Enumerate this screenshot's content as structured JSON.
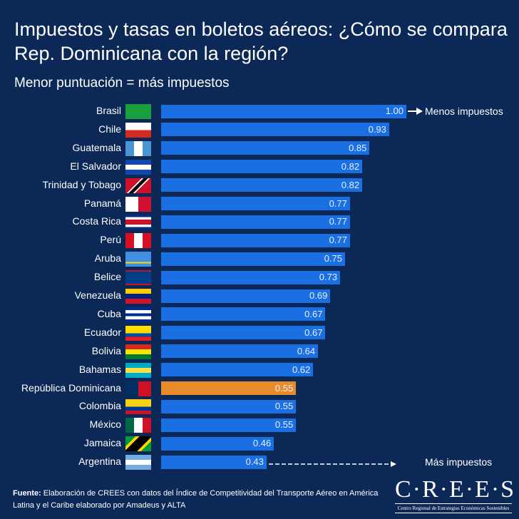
{
  "title": "Impuestos y tasas en boletos aéreos: ¿Cómo se compara Rep. Dominicana con la región?",
  "subtitle": "Menor puntuación = más impuestos",
  "colors": {
    "background": "#0c2857",
    "bar": "#1a6fe3",
    "highlight": "#e98b2a"
  },
  "chart_data": {
    "type": "bar",
    "orientation": "horizontal",
    "categories": [
      "Brasil",
      "Chile",
      "Guatemala",
      "El Salvador",
      "Trinidad y Tobago",
      "Panamá",
      "Costa Rica",
      "Perú",
      "Aruba",
      "Belice",
      "Venezuela",
      "Cuba",
      "Ecuador",
      "Bolivia",
      "Bahamas",
      "República Dominicana",
      "Colombia",
      "México",
      "Jamaica",
      "Argentina"
    ],
    "values": [
      1.0,
      0.93,
      0.85,
      0.82,
      0.82,
      0.77,
      0.77,
      0.77,
      0.75,
      0.73,
      0.69,
      0.67,
      0.67,
      0.64,
      0.62,
      0.55,
      0.55,
      0.55,
      0.46,
      0.43
    ],
    "value_labels": [
      "1.00",
      "0.93",
      "0.85",
      "0.82",
      "0.82",
      "0.77",
      "0.77",
      "0.77",
      "0.75",
      "0.73",
      "0.69",
      "0.67",
      "0.67",
      "0.64",
      "0.62",
      "0.55",
      "0.55",
      "0.55",
      "0.46",
      "0.43"
    ],
    "highlight": "República Dominicana",
    "xlim": [
      0,
      1
    ],
    "annotations": {
      "top": "Menos impuestos",
      "bottom": "Más impuestos"
    }
  },
  "footer": {
    "source_label": "Fuente:",
    "source_text": " Elaboración de CREES con datos del  Índice de Competitividad del Transporte Aéreo en América Latina y el Caribe elaborado por Amadeus y ALTA"
  },
  "logo": {
    "name": "C·R·E·E·S",
    "tagline": "Centro Regional de Estrategias Económicas Sostenibles"
  }
}
